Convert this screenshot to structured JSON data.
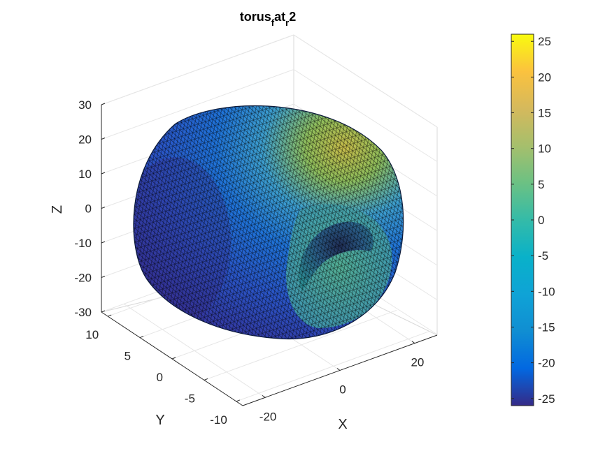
{
  "chart_data": {
    "type": "surface",
    "title": {
      "base": "torus",
      "sub1": "f",
      "mid": "at",
      "sub2": "r",
      "end": "2"
    },
    "xlabel": "X",
    "ylabel": "Y",
    "zlabel": "Z",
    "x_ticks": [
      "-20",
      "0",
      "20"
    ],
    "y_ticks": [
      "10",
      "5",
      "0",
      "-5",
      "-10"
    ],
    "z_ticks": [
      "30",
      "20",
      "10",
      "0",
      "-10",
      "-20",
      "-30"
    ],
    "xlim": [
      -26,
      26
    ],
    "ylim": [
      -11,
      11
    ],
    "zlim": [
      -30,
      30
    ],
    "colorbar": {
      "colormap": "parula",
      "range": [
        -26,
        26
      ],
      "ticks": [
        "25",
        "20",
        "15",
        "10",
        "5",
        "0",
        "-5",
        "-10",
        "-15",
        "-20",
        "-25"
      ]
    },
    "grid": true,
    "surface": "triangulated torus mesh with black edges, colored by value"
  }
}
